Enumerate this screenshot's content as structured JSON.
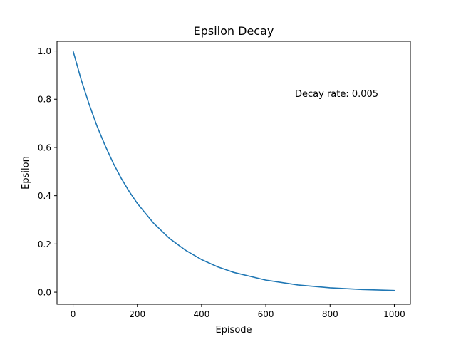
{
  "chart_data": {
    "type": "line",
    "title": "Epsilon Decay",
    "xlabel": "Episode",
    "ylabel": "Epsilon",
    "xlim": [
      -50,
      1050
    ],
    "ylim": [
      -0.05,
      1.04
    ],
    "x_ticks": [
      0,
      200,
      400,
      600,
      800,
      1000
    ],
    "y_ticks": [
      0.0,
      0.2,
      0.4,
      0.6,
      0.8,
      1.0
    ],
    "grid": false,
    "annotation": "Decay rate: 0.005",
    "series": [
      {
        "color": "#1f77b4",
        "x": [
          0,
          25,
          50,
          75,
          100,
          125,
          150,
          175,
          200,
          250,
          300,
          350,
          400,
          450,
          500,
          600,
          700,
          800,
          900,
          1000
        ],
        "y": [
          1.0,
          0.882,
          0.779,
          0.687,
          0.607,
          0.535,
          0.472,
          0.417,
          0.368,
          0.287,
          0.223,
          0.174,
          0.135,
          0.105,
          0.082,
          0.05,
          0.03,
          0.018,
          0.011,
          0.007
        ]
      }
    ]
  }
}
